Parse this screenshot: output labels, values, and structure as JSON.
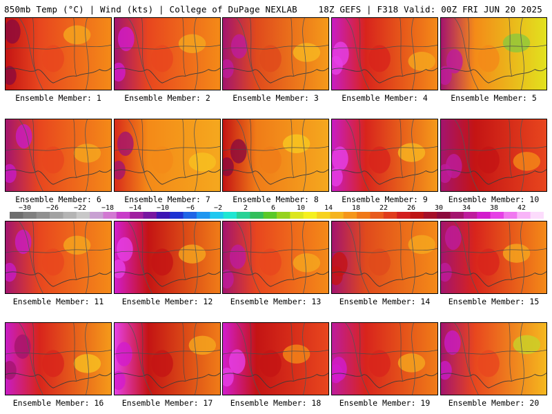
{
  "header": {
    "left": "850mb Temp (°C) | Wind (kts) | College of DuPage NEXLAB",
    "right": "18Z GEFS | F318 Valid: 00Z FRI JUN 20 2025"
  },
  "panels": [
    {
      "label": "Ensemble Member: 1",
      "west": "#c41414",
      "mid": "#e8461e",
      "east": "#f48a18",
      "hot": "#8c0a3c",
      "cool": "#f5a81e"
    },
    {
      "label": "Ensemble Member: 2",
      "west": "#a4146e",
      "mid": "#e8461e",
      "east": "#f48a18",
      "hot": "#d21ccc",
      "cool": "#f5a81e"
    },
    {
      "label": "Ensemble Member: 3",
      "west": "#a4146e",
      "mid": "#e04a1c",
      "east": "#f59a1a",
      "hot": "#be1c9c",
      "cool": "#f7b820"
    },
    {
      "label": "Ensemble Member: 4",
      "west": "#c81cc4",
      "mid": "#d8241c",
      "east": "#f48a18",
      "hot": "#e640e6",
      "cool": "#f5a81e"
    },
    {
      "label": "Ensemble Member: 5",
      "west": "#a4146e",
      "mid": "#f48a18",
      "east": "#e2e21e",
      "hot": "#be1c9c",
      "cool": "#8cc83c"
    },
    {
      "label": "Ensemble Member: 6",
      "west": "#a4146e",
      "mid": "#e8461e",
      "east": "#f48a18",
      "hot": "#c81cc4",
      "cool": "#f5a81e"
    },
    {
      "label": "Ensemble Member: 7",
      "west": "#d82c1a",
      "mid": "#f48a18",
      "east": "#f5a81e",
      "hot": "#a4146e",
      "cool": "#f7c020"
    },
    {
      "label": "Ensemble Member: 8",
      "west": "#c41414",
      "mid": "#f07c18",
      "east": "#f5a81e",
      "hot": "#8c0a3c",
      "cool": "#f7c820"
    },
    {
      "label": "Ensemble Member: 9",
      "west": "#c81cc4",
      "mid": "#d8241c",
      "east": "#f59a1a",
      "hot": "#e640e6",
      "cool": "#f7b820"
    },
    {
      "label": "Ensemble Member: 10",
      "west": "#a4146e",
      "mid": "#c41414",
      "east": "#e8461e",
      "hot": "#be1c9c",
      "cool": "#f48a18"
    },
    {
      "label": "Ensemble Member: 11",
      "west": "#a4146e",
      "mid": "#e8461e",
      "east": "#f48a18",
      "hot": "#c81cc4",
      "cool": "#f5a81e"
    },
    {
      "label": "Ensemble Member: 12",
      "west": "#d21ccc",
      "mid": "#c41414",
      "east": "#f07c18",
      "hot": "#e640e6",
      "cool": "#f5a81e"
    },
    {
      "label": "Ensemble Member: 13",
      "west": "#a4146e",
      "mid": "#e8461e",
      "east": "#f48a18",
      "hot": "#be1c9c",
      "cool": "#f5a81e"
    },
    {
      "label": "Ensemble Member: 14",
      "west": "#a4146e",
      "mid": "#e04a1c",
      "east": "#f48a18",
      "hot": "#c41414",
      "cool": "#f5a81e"
    },
    {
      "label": "Ensemble Member: 15",
      "west": "#a4146e",
      "mid": "#d8241c",
      "east": "#f48a18",
      "hot": "#be1c9c",
      "cool": "#f5a81e"
    },
    {
      "label": "Ensemble Member: 16",
      "west": "#c81cc4",
      "mid": "#d8241c",
      "east": "#f59a1a",
      "hot": "#a4146e",
      "cool": "#f7c020"
    },
    {
      "label": "Ensemble Member: 17",
      "west": "#e640e6",
      "mid": "#c41414",
      "east": "#f07c18",
      "hot": "#d21ccc",
      "cool": "#f5a81e"
    },
    {
      "label": "Ensemble Member: 18",
      "west": "#d21ccc",
      "mid": "#c41414",
      "east": "#e8461e",
      "hot": "#e640e6",
      "cool": "#f48a18"
    },
    {
      "label": "Ensemble Member: 19",
      "west": "#be1c9c",
      "mid": "#d8241c",
      "east": "#f07c18",
      "hot": "#d21ccc",
      "cool": "#f5a81e"
    },
    {
      "label": "Ensemble Member: 20",
      "west": "#a4146e",
      "mid": "#e8461e",
      "east": "#f5b81e",
      "hot": "#c81cc4",
      "cool": "#c8d228"
    }
  ],
  "colorbar": {
    "ticks": [
      "−30",
      "−26",
      "−22",
      "−18",
      "−14",
      "−10",
      "−6",
      "−2",
      "2",
      "6",
      "10",
      "14",
      "18",
      "22",
      "26",
      "30",
      "34",
      "38",
      "42"
    ],
    "colors": [
      "#6e6e6e",
      "#7f7f7f",
      "#909090",
      "#a2a2a2",
      "#b4b4b4",
      "#c8c8c8",
      "#c8a0d2",
      "#d278d2",
      "#c83cc8",
      "#a01ea0",
      "#7814a0",
      "#3c14b4",
      "#1e32d2",
      "#1e64e6",
      "#1e96f0",
      "#1ec8f0",
      "#1ee6d2",
      "#28d296",
      "#32be5a",
      "#5ac828",
      "#96d21e",
      "#dce61e",
      "#f5f01e",
      "#f7d21e",
      "#f5b41e",
      "#f5961a",
      "#f07818",
      "#e85a1c",
      "#e03c1c",
      "#d21e1e",
      "#be1414",
      "#a50f28",
      "#8c0a3c",
      "#a4146e",
      "#be1c9c",
      "#d21ccc",
      "#e640e6",
      "#f078f0",
      "#f8b4f8",
      "#fcdcfc"
    ]
  }
}
